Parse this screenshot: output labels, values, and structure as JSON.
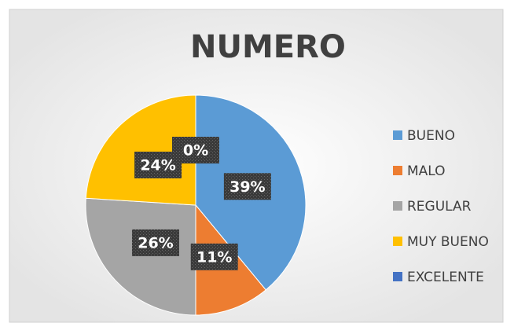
{
  "chart_data": {
    "type": "pie",
    "title": "NUMERO",
    "categories": [
      "BUENO",
      "MALO",
      "REGULAR",
      "MUY BUENO",
      "EXCELENTE"
    ],
    "values": [
      39,
      11,
      26,
      24,
      0
    ],
    "value_labels": [
      "39%",
      "11%",
      "26%",
      "24%",
      "0%"
    ],
    "colors": [
      "#5b9bd5",
      "#ed7d31",
      "#a5a5a5",
      "#ffc000",
      "#4472c4"
    ],
    "legend": "right"
  }
}
